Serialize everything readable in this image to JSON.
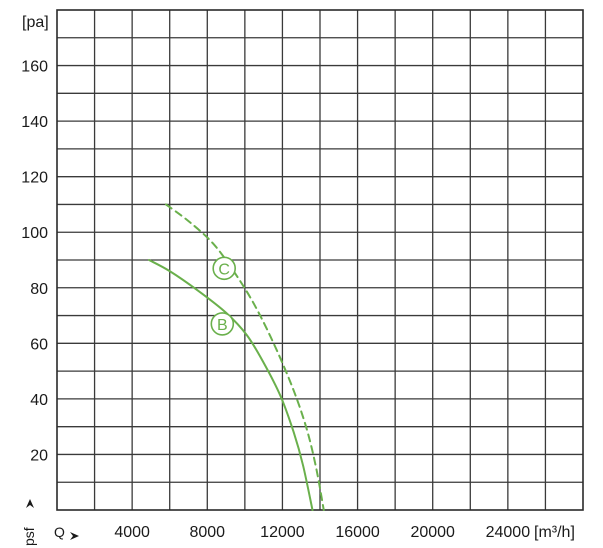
{
  "chart_data": {
    "type": "line",
    "x_label": "Q",
    "x_unit": "[m³/h]",
    "y_label": "psf",
    "y_unit": "[pa]",
    "xlim": [
      0,
      28000
    ],
    "ylim": [
      0,
      180
    ],
    "x_ticks": [
      4000,
      8000,
      12000,
      16000,
      20000,
      24000
    ],
    "x_tick_labels": [
      "4000",
      "8000",
      "12000",
      "16000",
      "20000",
      "24000"
    ],
    "y_ticks": [
      20,
      40,
      60,
      80,
      100,
      120,
      140,
      160
    ],
    "y_tick_labels": [
      "20",
      "40",
      "60",
      "80",
      "100",
      "120",
      "140",
      "160"
    ],
    "grid": true,
    "series": [
      {
        "name": "B",
        "style": "solid",
        "color": "#6ab04c",
        "points": [
          [
            4900,
            90
          ],
          [
            6000,
            86
          ],
          [
            7500,
            79
          ],
          [
            9000,
            71
          ],
          [
            10100,
            63
          ],
          [
            11000,
            53
          ],
          [
            11900,
            41
          ],
          [
            12600,
            28
          ],
          [
            13100,
            16
          ],
          [
            13600,
            0
          ]
        ]
      },
      {
        "name": "C",
        "style": "dashed",
        "color": "#6ab04c",
        "points": [
          [
            5800,
            110
          ],
          [
            7000,
            104
          ],
          [
            8300,
            96
          ],
          [
            9400,
            86
          ],
          [
            10500,
            74
          ],
          [
            11600,
            59
          ],
          [
            12600,
            43
          ],
          [
            13300,
            29
          ],
          [
            13800,
            15
          ],
          [
            14200,
            0
          ]
        ]
      }
    ],
    "annotations": [
      {
        "label": "C",
        "x": 8900,
        "y": 87
      },
      {
        "label": "B",
        "x": 8800,
        "y": 67
      }
    ]
  }
}
